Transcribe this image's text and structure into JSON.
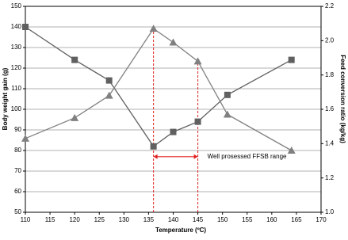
{
  "chart_data": {
    "type": "line",
    "x_label": "Temperature (ºC)",
    "y_label": "Body weight gain (g)",
    "y2_label": "Feed conversion ratio (kg/kg)",
    "xlim": [
      110,
      170
    ],
    "xticks": [
      110,
      115,
      120,
      125,
      130,
      135,
      140,
      145,
      150,
      155,
      160,
      165,
      170
    ],
    "ylim": [
      50,
      150
    ],
    "yticks": [
      50,
      60,
      70,
      80,
      90,
      100,
      110,
      120,
      130,
      140,
      150
    ],
    "y2lim": [
      1.0,
      2.2
    ],
    "y2ticks": [
      {
        "value": 1.0,
        "label": "1.0"
      },
      1.2,
      1.4,
      1.6,
      1.8,
      {
        "value": 2.0,
        "label": "2.0"
      },
      2.2
    ],
    "grid": true,
    "series": [
      {
        "name": "Body weight gain",
        "color": "#606060",
        "marker": "square",
        "axis": "y",
        "x": [
          110,
          120,
          127,
          136,
          140,
          145,
          151,
          164
        ],
        "values": [
          140,
          124,
          114,
          82,
          89,
          94,
          107,
          124
        ]
      },
      {
        "name": "Feed conversion ratio",
        "color": "#808080",
        "marker": "triangle",
        "axis": "y2",
        "x": [
          110,
          120,
          127,
          136,
          140,
          145,
          151,
          164
        ],
        "values": [
          1.43,
          1.55,
          1.68,
          2.07,
          1.99,
          1.88,
          1.57,
          1.36
        ]
      }
    ],
    "range_lines": [
      136,
      145
    ],
    "range_color": "#e02020",
    "range_annotation": {
      "text": "Well prosessed FFSB range",
      "y": 77
    }
  }
}
